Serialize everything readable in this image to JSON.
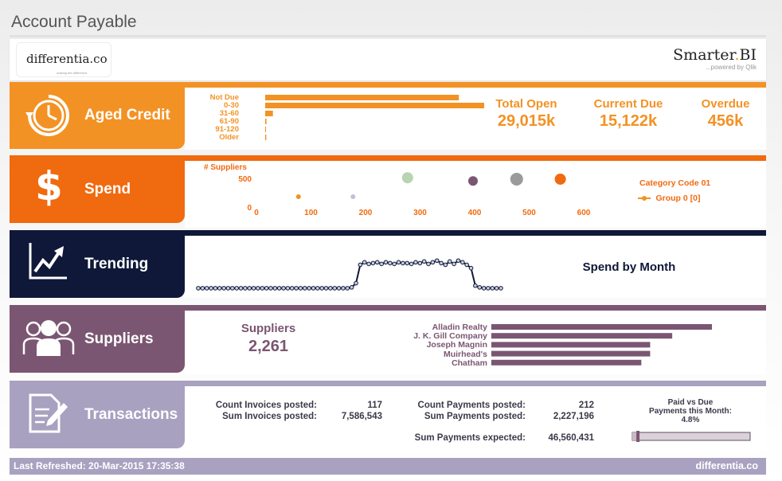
{
  "page": {
    "title": "Account Payable"
  },
  "header": {
    "left_logo": {
      "brand": "differentia.co",
      "tagline": "making the difference"
    },
    "right_logo": {
      "brand_main": "Smarter",
      "brand_dot": ".",
      "brand_suffix": "BI",
      "tagline": "...powered by Qlik"
    }
  },
  "colors": {
    "aged_credit": "#f39224",
    "spend": "#f06a0f",
    "trending": "#0f1838",
    "suppliers": "#7b5672",
    "transactions": "#a9a1c0"
  },
  "icons": {
    "aged_credit": "clock-refresh-icon",
    "spend": "dollar-icon",
    "trending": "trend-chart-icon",
    "suppliers": "people-icon",
    "transactions": "document-pen-icon"
  },
  "aged_credit": {
    "label": "Aged Credit",
    "categories": [
      "Not Due",
      "0-30",
      "31-60",
      "61-90",
      "91-120",
      "Older"
    ],
    "values": [
      13000,
      14700,
      520,
      85,
      40,
      75
    ],
    "kpis": [
      {
        "label": "Total Open",
        "value": "29,015k"
      },
      {
        "label": "Current Due",
        "value": "15,122k"
      },
      {
        "label": "Overdue",
        "value": "456k"
      }
    ]
  },
  "spend": {
    "label": "Spend",
    "y_label": "# Suppliers",
    "y_ticks": [
      "500",
      "0"
    ],
    "x_ticks": [
      "0",
      "100",
      "200",
      "300",
      "400",
      "500",
      "600"
    ],
    "x_unit": "M",
    "legend_title": "Category Code 01",
    "legend_item": "Group 0 [0]",
    "points": [
      {
        "x": 80,
        "y": 190,
        "r": 3,
        "color": "#f39224"
      },
      {
        "x": 180,
        "y": 190,
        "r": 3,
        "color": "#c3bfd9"
      },
      {
        "x": 280,
        "y": 600,
        "r": 7,
        "color": "#b8d4b0"
      },
      {
        "x": 400,
        "y": 530,
        "r": 6,
        "color": "#7b5672"
      },
      {
        "x": 480,
        "y": 570,
        "r": 8,
        "color": "#9a9a9a"
      },
      {
        "x": 560,
        "y": 570,
        "r": 7,
        "color": "#f06a0f"
      }
    ]
  },
  "trending": {
    "label": "Trending",
    "title": "Spend by Month",
    "values": [
      2,
      2,
      2,
      2,
      2,
      2,
      2,
      2,
      2,
      2,
      2,
      2,
      2,
      2,
      2,
      2,
      2,
      2,
      2,
      2,
      2,
      2,
      2,
      2,
      2,
      2,
      2,
      2,
      2,
      2,
      2,
      2,
      2,
      2,
      2,
      2,
      3,
      8,
      30,
      33,
      31,
      32,
      33,
      31,
      33,
      32,
      31,
      33,
      32,
      32,
      31,
      33,
      32,
      34,
      31,
      33,
      35,
      32,
      30,
      34,
      31,
      35,
      33,
      30,
      26,
      5,
      3,
      2,
      2,
      2,
      2,
      2
    ]
  },
  "suppliers": {
    "label": "Suppliers",
    "kpi_label": "Suppliers",
    "kpi_value": "2,261",
    "names": [
      "Alladin Realty",
      "J. K. Gill Company",
      "Joseph Magnin",
      "Muirhead's",
      "Chatham"
    ],
    "values": [
      100,
      82,
      72,
      72,
      68
    ]
  },
  "transactions": {
    "label": "Transactions",
    "items": [
      {
        "label": "Count Invoices posted:",
        "value": "117"
      },
      {
        "label": "Sum Invoices posted:",
        "value": "7,586,543"
      },
      {
        "label": "Count  Payments posted:",
        "value": "212"
      },
      {
        "label": "Sum Payments posted:",
        "value": "2,227,196"
      },
      {
        "label": "Sum Payments expected:",
        "value": "46,560,431"
      }
    ],
    "gauge_title_1": "Paid vs Due",
    "gauge_title_2": "Payments this Month:",
    "gauge_value_text": "4.8%",
    "gauge_fraction": 0.048
  },
  "footer": {
    "last_refreshed": "Last Refreshed: 20-Mar-2015 17:35:38",
    "brand": "differentia.co"
  }
}
